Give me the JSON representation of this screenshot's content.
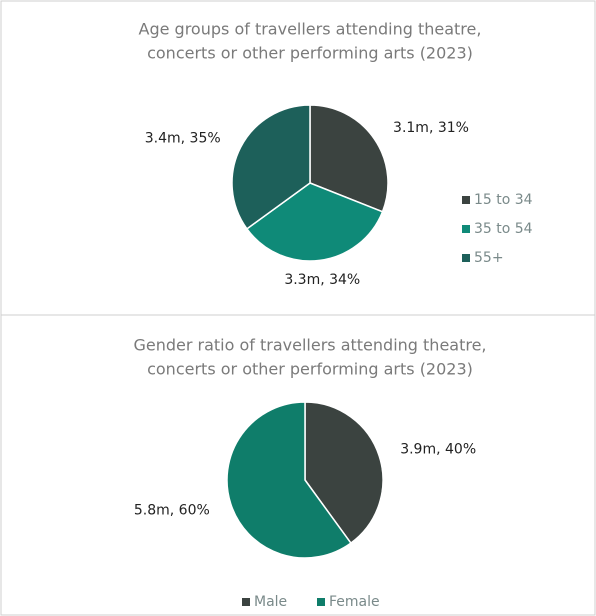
{
  "chart_data": [
    {
      "type": "pie",
      "title": [
        "Age groups of travellers attending theatre,",
        "concerts or other performing arts (2023)"
      ],
      "categories": [
        "15 to 34",
        "35 to 54",
        "55+"
      ],
      "values": [
        31,
        34,
        35
      ],
      "value_labels": [
        "3.1m, 31%",
        "3.3m, 34%",
        "3.4m, 35%"
      ],
      "colors": [
        "#3b4340",
        "#0f8a78",
        "#1d605a"
      ],
      "legend": "right"
    },
    {
      "type": "pie",
      "title": [
        "Gender ratio of travellers attending theatre,",
        "concerts or other performing arts (2023)"
      ],
      "categories": [
        "Male",
        "Female"
      ],
      "values": [
        40,
        60
      ],
      "value_labels": [
        "3.9m, 40%",
        "5.8m, 60%"
      ],
      "colors": [
        "#3b4340",
        "#0f7d6a"
      ],
      "legend": "bottom"
    }
  ]
}
